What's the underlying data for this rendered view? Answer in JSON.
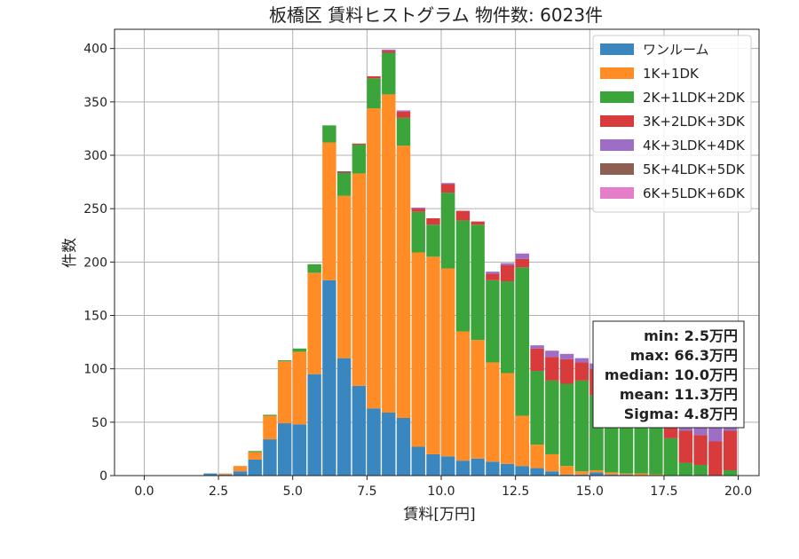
{
  "chart_data": {
    "type": "bar",
    "stacked": true,
    "title": "板橋区 賃料ヒストグラム  物件数: 6023件",
    "xlabel": "賃料[万円]",
    "ylabel": "件数",
    "xlim": [
      -1.0,
      20.7
    ],
    "ylim": [
      0,
      418
    ],
    "xticks": [
      0.0,
      2.5,
      5.0,
      7.5,
      10.0,
      12.5,
      15.0,
      17.5,
      20.0
    ],
    "xtick_labels": [
      "0.0",
      "2.5",
      "5.0",
      "7.5",
      "10.0",
      "12.5",
      "15.0",
      "17.5",
      "20.0"
    ],
    "yticks": [
      0,
      50,
      100,
      150,
      200,
      250,
      300,
      350,
      400
    ],
    "ytick_labels": [
      "0",
      "50",
      "100",
      "150",
      "200",
      "250",
      "300",
      "350",
      "400"
    ],
    "grid": true,
    "legend_position": "top-right",
    "bin_width": 0.5,
    "bin_left_edges": [
      2.0,
      2.5,
      3.0,
      3.5,
      4.0,
      4.5,
      5.0,
      5.5,
      6.0,
      6.5,
      7.0,
      7.5,
      8.0,
      8.5,
      9.0,
      9.5,
      10.0,
      10.5,
      11.0,
      11.5,
      12.0,
      12.5,
      13.0,
      13.5,
      14.0,
      14.5,
      15.0,
      15.5,
      16.0,
      16.5,
      17.0,
      17.5,
      18.0,
      18.5,
      19.0,
      19.5
    ],
    "series": [
      {
        "name": "ワンルーム",
        "color": "#3a87bf",
        "values": [
          2,
          1,
          4,
          15,
          34,
          49,
          48,
          95,
          183,
          110,
          84,
          63,
          59,
          54,
          27,
          20,
          18,
          14,
          16,
          13,
          11,
          9,
          7,
          4,
          1,
          1,
          3,
          1,
          1,
          0,
          0,
          0,
          0,
          0,
          0,
          0
        ]
      },
      {
        "name": "1K+1DK",
        "color": "#ff8c25",
        "values": [
          0,
          1,
          5,
          7,
          22,
          58,
          68,
          95,
          129,
          152,
          199,
          281,
          298,
          255,
          182,
          185,
          176,
          121,
          111,
          93,
          85,
          47,
          22,
          16,
          8,
          3,
          2,
          2,
          1,
          2,
          1,
          0,
          0,
          0,
          0,
          0
        ]
      },
      {
        "name": "2K+1LDK+2DK",
        "color": "#3ba43b",
        "values": [
          0,
          0,
          0,
          1,
          1,
          1,
          3,
          8,
          16,
          21,
          27,
          28,
          39,
          26,
          38,
          30,
          71,
          104,
          108,
          77,
          86,
          139,
          69,
          69,
          77,
          85,
          70,
          74,
          70,
          54,
          48,
          35,
          12,
          10,
          0,
          5
        ]
      },
      {
        "name": "3K+2LDK+3DK",
        "color": "#d83b3b",
        "values": [
          0,
          0,
          0,
          0,
          0,
          0,
          0,
          0,
          0,
          0,
          1,
          2,
          2,
          6,
          3,
          6,
          8,
          9,
          3,
          6,
          15,
          8,
          21,
          22,
          23,
          17,
          25,
          14,
          24,
          20,
          25,
          27,
          30,
          28,
          32,
          37
        ]
      },
      {
        "name": "4K+3LDK+4DK",
        "color": "#9e6dc6",
        "values": [
          0,
          0,
          0,
          0,
          0,
          0,
          0,
          0,
          0,
          0,
          0,
          0,
          1,
          1,
          1,
          0,
          1,
          0,
          0,
          2,
          2,
          5,
          3,
          6,
          5,
          4,
          5,
          5,
          4,
          5,
          6,
          7,
          8,
          8,
          14,
          6
        ]
      },
      {
        "name": "5K+4LDK+5DK",
        "color": "#8f5e52",
        "values": [
          0,
          0,
          0,
          0,
          0,
          0,
          0,
          0,
          0,
          2,
          0,
          0,
          0,
          0,
          0,
          0,
          0,
          0,
          0,
          0,
          0,
          0,
          0,
          0,
          0,
          0,
          0,
          0,
          0,
          0,
          0,
          0,
          0,
          0,
          0,
          0
        ]
      },
      {
        "name": "6K+5LDK+6DK",
        "color": "#e47ec8",
        "values": [
          0,
          0,
          0,
          0,
          0,
          0,
          0,
          0,
          0,
          0,
          0,
          0,
          0,
          0,
          0,
          0,
          0,
          0,
          0,
          0,
          0,
          0,
          0,
          0,
          0,
          0,
          0,
          0,
          0,
          0,
          0,
          0,
          0,
          0,
          0,
          0
        ]
      }
    ],
    "stats_box": {
      "lines": [
        "min: 2.5万円",
        "max: 66.3万円",
        "median: 10.0万円",
        "mean: 11.3万円",
        "Sigma: 4.8万円"
      ]
    }
  }
}
